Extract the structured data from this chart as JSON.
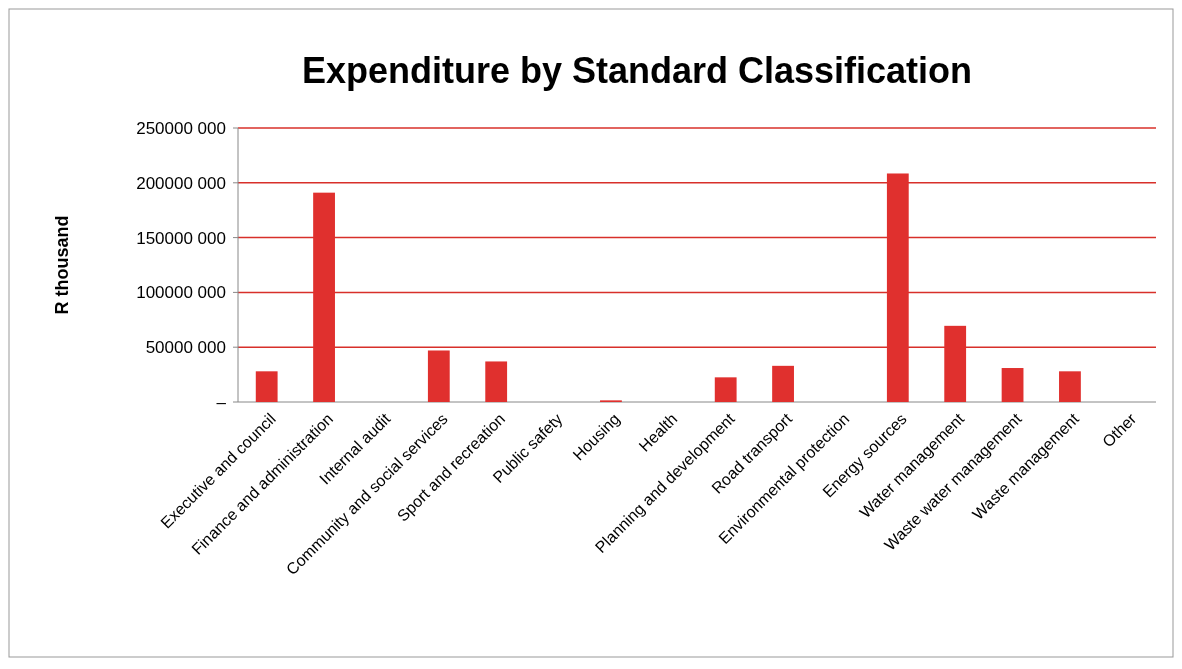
{
  "chart_data": {
    "type": "bar",
    "title": "Expenditure by Standard Classification",
    "ylabel": "R thousand",
    "categories": [
      "Executive and council",
      "Finance and administration",
      "Internal audit",
      "Community and social services",
      "Sport and recreation",
      "Public safety",
      "Housing",
      "Health",
      "Planning and development",
      "Road transport",
      "Environmental protection",
      "Energy sources",
      "Water management",
      "Waste water management",
      "Waste management",
      "Other"
    ],
    "values": [
      28000000,
      191000000,
      0,
      47000000,
      37000000,
      0,
      1500000,
      0,
      22500000,
      33000000,
      0,
      208500000,
      69500000,
      31000000,
      28000000,
      0
    ],
    "color": "#e0302e",
    "ylim": [
      0,
      250000000
    ],
    "yticks": [
      {
        "value": 0,
        "label": "–"
      },
      {
        "value": 50000000,
        "label": "50000 000"
      },
      {
        "value": 100000000,
        "label": "100000 000"
      },
      {
        "value": 150000000,
        "label": "150000 000"
      },
      {
        "value": 200000000,
        "label": "200000 000"
      },
      {
        "value": 250000000,
        "label": "250000 000"
      }
    ],
    "grid": "y"
  }
}
